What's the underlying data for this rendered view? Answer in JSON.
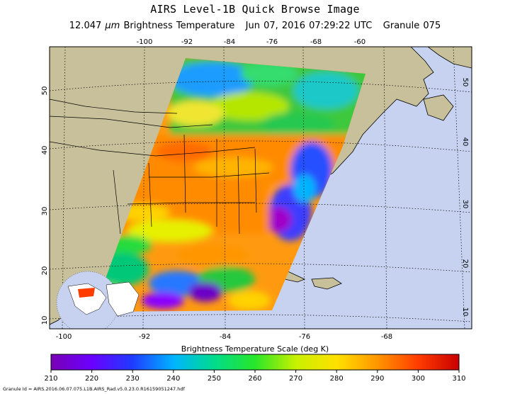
{
  "header": {
    "title": "AIRS Level-1B Quick Browse Image",
    "wavelength": "12.047",
    "unit": "μm",
    "quantity": "Brightness Temperature",
    "date": "Jun 07, 2016 07:29:22 UTC",
    "granule": "Granule 075"
  },
  "map": {
    "top_lon_labels": [
      "-100",
      "-92",
      "-84",
      "-76",
      "-68",
      "-60"
    ],
    "bottom_lon_labels": [
      "-100",
      "-92",
      "-84",
      "-76",
      "-68"
    ],
    "lat_labels": [
      "50",
      "40",
      "30",
      "20",
      "10"
    ],
    "colors": {
      "land": "#c8c09a",
      "ocean": "#c6d2f0",
      "coast": "#000000"
    }
  },
  "colorbar": {
    "title": "Brightness Temperature Scale (deg K)",
    "tick_labels": [
      "210",
      "220",
      "230",
      "240",
      "250",
      "260",
      "270",
      "280",
      "290",
      "300",
      "310"
    ],
    "stops": [
      "#7a00b4",
      "#6a00ff",
      "#1f3cff",
      "#00b4ff",
      "#00dc8c",
      "#28e628",
      "#c8f000",
      "#ffe100",
      "#ff9600",
      "#ff3c00",
      "#c80000"
    ]
  },
  "footer": {
    "granule_id": "Granule Id = AIRS.2016.06.07.075.L1B.AIRS_Rad.v5.0.23.0.R16159051247.hdf"
  }
}
